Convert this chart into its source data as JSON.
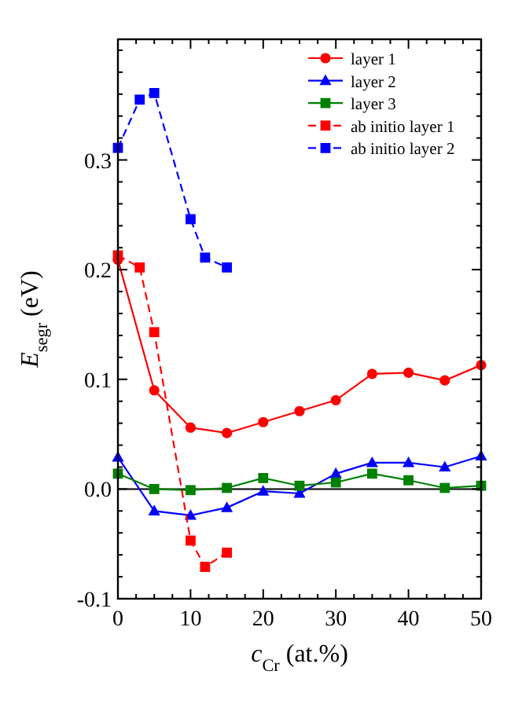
{
  "chart_data": {
    "type": "line",
    "xlabel": "c$_{Cr}$ (at.%)",
    "ylabel": "E$_{segr}$ (eV)",
    "xlim": [
      0,
      50
    ],
    "ylim": [
      -0.1,
      0.41
    ],
    "xticks": [
      0,
      {
        "value": 2.5,
        "label": null
      },
      10,
      {
        "value": 7.5,
        "label": null
      },
      {
        "value": 5,
        "label": null
      },
      {
        "value": 12.5,
        "label": null
      },
      {
        "value": 15,
        "label": null
      },
      {
        "value": 17.5,
        "label": null
      },
      20,
      {
        "value": 22.5,
        "label": null
      },
      {
        "value": 25,
        "label": null
      },
      {
        "value": 27.5,
        "label": null
      },
      30,
      {
        "value": 32.5,
        "label": null
      },
      {
        "value": 35,
        "label": null
      },
      {
        "value": 37.5,
        "label": null
      },
      40,
      {
        "value": 42.5,
        "label": null
      },
      {
        "value": 45,
        "label": null
      },
      {
        "value": 47.5,
        "label": null
      },
      50
    ],
    "yticks": [
      {
        "value": -0.1,
        "label": "-0.1"
      },
      {
        "value": -0.08,
        "label": null
      },
      {
        "value": -0.06,
        "label": null
      },
      {
        "value": -0.04,
        "label": null
      },
      {
        "value": -0.02,
        "label": null
      },
      {
        "value": 0,
        "label": "0.0"
      },
      {
        "value": 0.02,
        "label": null
      },
      {
        "value": 0.04,
        "label": null
      },
      {
        "value": 0.06,
        "label": null
      },
      {
        "value": 0.08,
        "label": null
      },
      0.1,
      {
        "value": 0.12,
        "label": null
      },
      {
        "value": 0.14,
        "label": null
      },
      {
        "value": 0.16,
        "label": null
      },
      {
        "value": 0.18,
        "label": null
      },
      0.2,
      {
        "value": 0.22,
        "label": null
      },
      {
        "value": 0.24,
        "label": null
      },
      {
        "value": 0.26,
        "label": null
      },
      {
        "value": 0.28,
        "label": null
      },
      0.3,
      {
        "value": 0.32,
        "label": null
      },
      {
        "value": 0.34,
        "label": null
      },
      {
        "value": 0.36,
        "label": null
      },
      {
        "value": 0.38,
        "label": null
      },
      {
        "value": 0.4,
        "label": null
      }
    ],
    "ref_lines": [
      {
        "axis": "y",
        "value": 0,
        "color": "#000000"
      }
    ],
    "legend": "top right",
    "grid": false,
    "series": [
      {
        "name": "layer 1",
        "color": "#ff0000",
        "marker": "circle",
        "line_style": "solid",
        "x": [
          0,
          5,
          10,
          15,
          20,
          25,
          30,
          35,
          40,
          45,
          50
        ],
        "values": [
          0.209,
          0.09,
          0.056,
          0.051,
          0.061,
          0.071,
          0.081,
          0.105,
          0.106,
          0.099,
          0.113
        ]
      },
      {
        "name": "layer 2",
        "color": "#0000ff",
        "marker": "triangle",
        "line_style": "solid",
        "x": [
          0,
          5,
          10,
          15,
          20,
          25,
          30,
          35,
          40,
          45,
          50
        ],
        "values": [
          0.029,
          -0.02,
          -0.024,
          -0.017,
          -0.002,
          -0.004,
          0.014,
          0.024,
          0.024,
          0.02,
          0.03
        ]
      },
      {
        "name": "layer 3",
        "color": "#008000",
        "marker": "square",
        "line_style": "solid",
        "x": [
          0,
          5,
          10,
          15,
          20,
          25,
          30,
          35,
          40,
          45,
          50
        ],
        "values": [
          0.014,
          0.0,
          -0.001,
          0.001,
          0.01,
          0.003,
          0.006,
          0.014,
          0.008,
          0.001,
          0.003
        ]
      },
      {
        "name": "ab initio layer 1",
        "color": "#ff0000",
        "marker": "square",
        "line_style": "dashed",
        "x": [
          0,
          3,
          5,
          10,
          12,
          15
        ],
        "values": [
          0.213,
          0.202,
          0.143,
          -0.047,
          -0.071,
          -0.058
        ]
      },
      {
        "name": "ab initio layer 2",
        "color": "#0000ff",
        "marker": "square",
        "line_style": "dashed",
        "x": [
          0,
          3,
          5,
          10,
          12,
          15
        ],
        "values": [
          0.311,
          0.355,
          0.361,
          0.246,
          0.211,
          0.202
        ]
      }
    ]
  }
}
